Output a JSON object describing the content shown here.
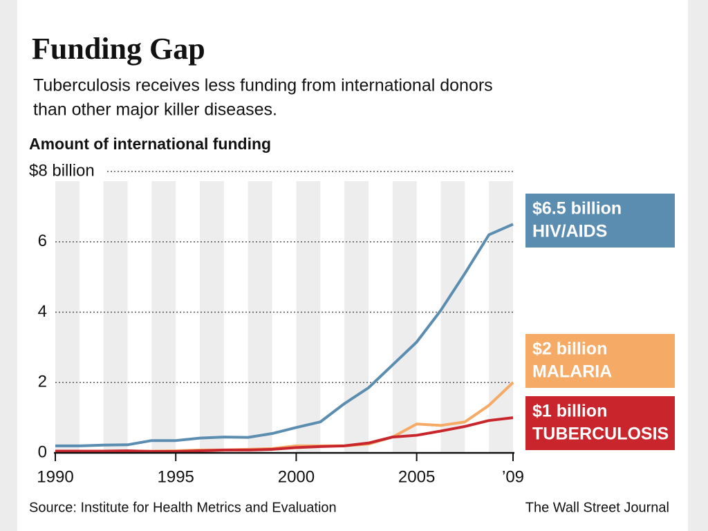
{
  "chart_data": {
    "type": "line",
    "title": "Funding Gap",
    "subtitle": [
      "Tuberculosis receives less funding from international donors",
      "than other major killer diseases."
    ],
    "y_label": "Amount of international funding",
    "source": "Source: Institute for Health Metrics and Evaluation",
    "credit": "The Wall Street Journal",
    "x": [
      1990,
      1991,
      1992,
      1993,
      1994,
      1995,
      1996,
      1997,
      1998,
      1999,
      2000,
      2001,
      2002,
      2003,
      2004,
      2005,
      2006,
      2007,
      2008,
      2009
    ],
    "xlim": [
      1990,
      2009
    ],
    "xticks": [
      1990,
      1995,
      2000,
      2005,
      {
        "value": 2009,
        "label": "’09"
      }
    ],
    "ylim": [
      0,
      8
    ],
    "yticks": [
      0,
      2,
      4,
      6,
      {
        "value": 8,
        "label": "$8 billion"
      }
    ],
    "grid": true,
    "series": [
      {
        "name": "HIV/AIDS",
        "color": "#5b8db1",
        "values": [
          0.2,
          0.2,
          0.22,
          0.23,
          0.35,
          0.35,
          0.42,
          0.45,
          0.44,
          0.55,
          0.72,
          0.88,
          1.4,
          1.85,
          2.5,
          3.15,
          4.05,
          5.1,
          6.2,
          6.5
        ],
        "value_labels": [
          null,
          null,
          null,
          null,
          null,
          null,
          null,
          null,
          null,
          null,
          null,
          null,
          null,
          null,
          null,
          null,
          null,
          null,
          null,
          "$6.5 billion"
        ]
      },
      {
        "name": "MALARIA",
        "color": "#f5aa65",
        "values": [
          0.02,
          0.02,
          0.03,
          0.05,
          0.05,
          0.06,
          0.08,
          0.08,
          0.1,
          0.12,
          0.2,
          0.2,
          0.2,
          0.25,
          0.45,
          0.82,
          0.78,
          0.88,
          1.35,
          2.0
        ],
        "value_labels": [
          null,
          null,
          null,
          null,
          null,
          null,
          null,
          null,
          null,
          null,
          null,
          null,
          null,
          null,
          null,
          null,
          null,
          null,
          null,
          "$2 billion"
        ]
      },
      {
        "name": "TUBERCULOSIS",
        "color": "#c8262c",
        "values": [
          0.05,
          0.05,
          0.05,
          0.06,
          0.04,
          0.04,
          0.06,
          0.08,
          0.08,
          0.1,
          0.15,
          0.18,
          0.2,
          0.28,
          0.45,
          0.5,
          0.62,
          0.75,
          0.92,
          1.0
        ],
        "value_labels": [
          null,
          null,
          null,
          null,
          null,
          null,
          null,
          null,
          null,
          null,
          null,
          null,
          null,
          null,
          null,
          null,
          null,
          null,
          null,
          "$1 billion"
        ]
      }
    ]
  }
}
